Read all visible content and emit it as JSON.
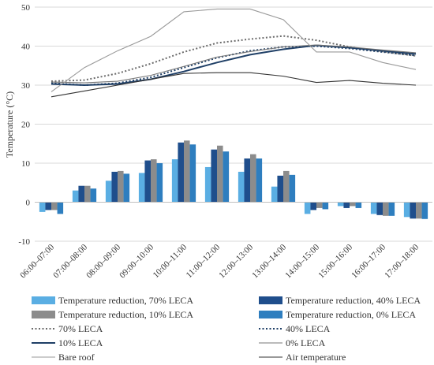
{
  "chart_data": {
    "type": "bar",
    "ylabel": "Temperature (°C)",
    "ylim": [
      -10,
      50
    ],
    "yticks": [
      -10,
      0,
      10,
      20,
      30,
      40,
      50
    ],
    "grid": true,
    "legend_position": "bottom",
    "categories": [
      "06:00–07:00",
      "07:00–08:00",
      "08:00–09:00",
      "09:00–10:00",
      "10:00–11:00",
      "11:00–12:00",
      "12:00–13:00",
      "13:00–14:00",
      "14:00–15:00",
      "15:00–16:00",
      "16:00–17:00",
      "17:00–18:00"
    ],
    "bar_series": [
      {
        "name": "Temperature reduction, 70% LECA",
        "color": "#5aaee3",
        "values": [
          -2.5,
          3.0,
          5.5,
          7.5,
          11.0,
          9.0,
          7.8,
          4.0,
          -3.0,
          -1.0,
          -3.0,
          -3.8
        ]
      },
      {
        "name": "Temperature reduction, 40% LECA",
        "color": "#1f4e8c",
        "values": [
          -2.0,
          4.2,
          7.8,
          10.7,
          15.3,
          13.5,
          11.2,
          6.8,
          -2.0,
          -1.5,
          -3.3,
          -4.2
        ]
      },
      {
        "name": "Temperature reduction, 10% LECA",
        "color": "#8c8c8c",
        "values": [
          -2.0,
          4.2,
          8.0,
          11.0,
          15.8,
          14.5,
          12.3,
          8.0,
          -1.5,
          -1.0,
          -3.5,
          -4.2
        ]
      },
      {
        "name": "Temperature reduction, 0% LECA",
        "color": "#2e7ebf",
        "values": [
          -3.0,
          3.5,
          7.3,
          10.0,
          14.8,
          13.0,
          11.2,
          7.0,
          -1.8,
          -1.5,
          -3.5,
          -4.3
        ]
      }
    ],
    "line_series": [
      {
        "name": "70% LECA",
        "style": "dotted",
        "color": "#6b6b6b",
        "values": [
          31.0,
          31.3,
          33.0,
          35.5,
          38.5,
          40.8,
          41.8,
          42.6,
          41.5,
          39.8,
          38.6,
          37.5
        ]
      },
      {
        "name": "40% LECA",
        "style": "dotted",
        "color": "#1f3f66",
        "values": [
          30.5,
          30.0,
          30.5,
          32.0,
          34.5,
          37.0,
          38.8,
          39.8,
          40.0,
          39.4,
          38.5,
          37.6
        ]
      },
      {
        "name": "10% LECA",
        "style": "solid",
        "color": "#1f3f66",
        "values": [
          30.3,
          30.0,
          30.3,
          31.5,
          33.5,
          35.8,
          37.8,
          39.2,
          40.2,
          39.6,
          38.8,
          38.0
        ]
      },
      {
        "name": "0% LECA",
        "style": "solid",
        "color": "#777777",
        "values": [
          30.8,
          30.6,
          31.0,
          32.5,
          34.8,
          37.2,
          38.6,
          39.8,
          40.3,
          39.8,
          39.0,
          38.3
        ]
      },
      {
        "name": "Bare roof",
        "style": "solid",
        "color": "#999999",
        "values": [
          28.3,
          34.5,
          38.8,
          42.5,
          48.8,
          49.5,
          49.5,
          46.8,
          38.5,
          38.5,
          35.8,
          34.0
        ]
      },
      {
        "name": "Air temperature",
        "style": "solid",
        "color": "#333333",
        "values": [
          27.0,
          28.5,
          30.0,
          31.5,
          33.0,
          33.2,
          33.2,
          32.3,
          30.7,
          31.2,
          30.5,
          30.0
        ]
      }
    ]
  },
  "colors": {
    "axis": "#bfbfbf",
    "grid": "#d9d9d9",
    "text": "#333333"
  }
}
